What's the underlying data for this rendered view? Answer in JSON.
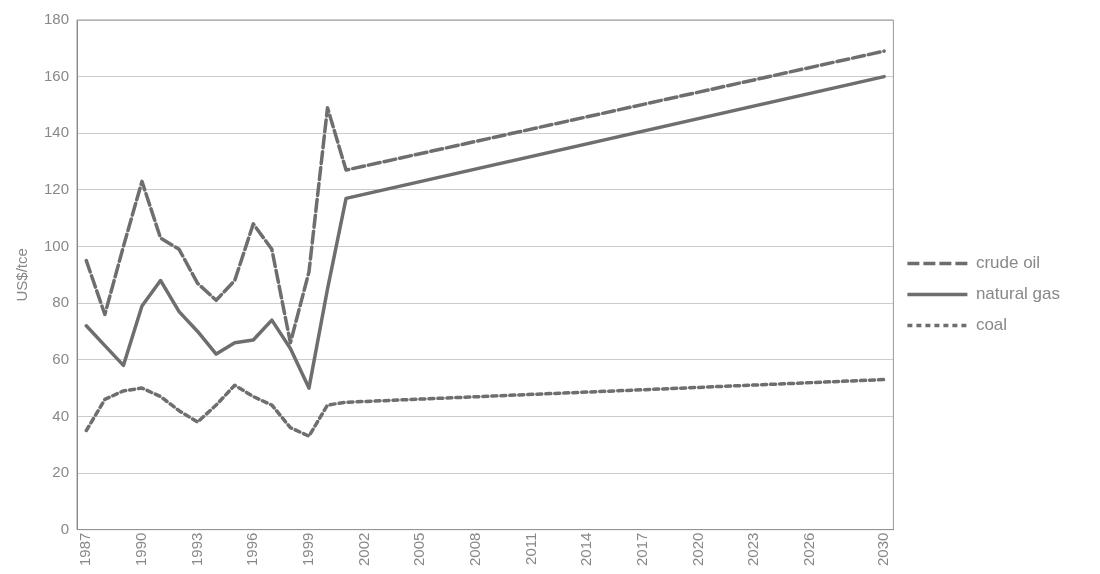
{
  "chart_data": {
    "type": "line",
    "ylabel": "US$/tce",
    "x": [
      1987,
      1988,
      1989,
      1990,
      1991,
      1992,
      1993,
      1994,
      1995,
      1996,
      1997,
      1998,
      1999,
      2000,
      2001,
      2030
    ],
    "series": [
      {
        "name": "crude oil",
        "color": "#6e6e6e",
        "line_style": "dashed",
        "values": [
          95,
          76,
          100,
          123,
          103,
          99,
          87,
          81,
          88,
          108,
          99,
          66,
          91,
          149,
          127,
          169
        ]
      },
      {
        "name": "natural gas",
        "color": "#6e6e6e",
        "line_style": "solid",
        "values": [
          72,
          65,
          58,
          79,
          88,
          77,
          70,
          62,
          66,
          67,
          74,
          64,
          50,
          85,
          117,
          160
        ]
      },
      {
        "name": "coal",
        "color": "#6e6e6e",
        "line_style": "dotted",
        "values": [
          35,
          46,
          49,
          50,
          47,
          42,
          38,
          44,
          51,
          47,
          44,
          36,
          33,
          44,
          45,
          53
        ]
      }
    ],
    "xlim": [
      1986.5,
      2030.5
    ],
    "xticks": [
      1987,
      1990,
      1993,
      1996,
      1999,
      2002,
      2005,
      2008,
      2011,
      2014,
      2017,
      2020,
      2023,
      2026,
      2030
    ],
    "ylim": [
      0,
      180
    ],
    "yticks": [
      0,
      20,
      40,
      60,
      80,
      100,
      120,
      140,
      160,
      180
    ],
    "grid": "y",
    "legend": "right",
    "marker": "none"
  }
}
